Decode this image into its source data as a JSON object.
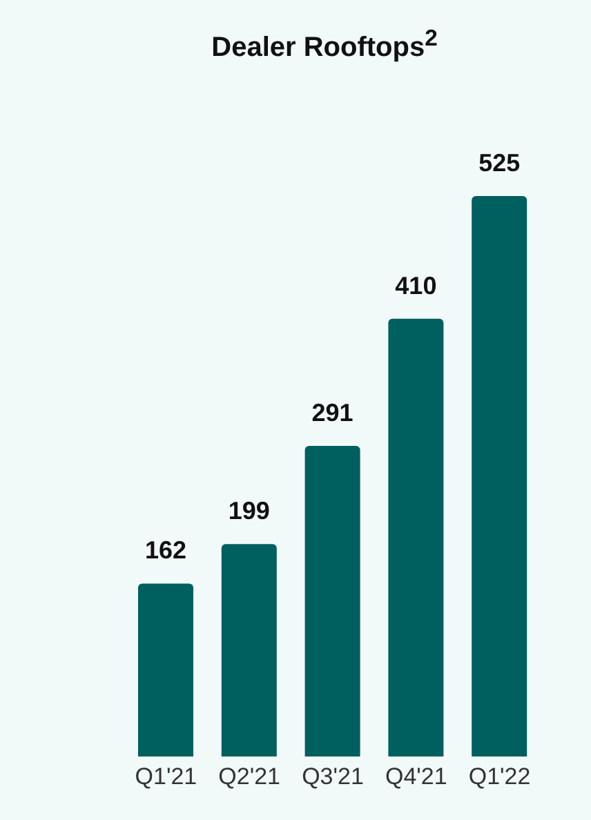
{
  "chart_data": {
    "type": "bar",
    "title": "Dealer Rooftops$^{2}$",
    "categories": [
      "Q1'21",
      "Q2'21",
      "Q3'21",
      "Q4'21",
      "Q1'22"
    ],
    "values": [
      162,
      199,
      291,
      410,
      525
    ],
    "color": "#005f5f",
    "data_labels": true
  }
}
